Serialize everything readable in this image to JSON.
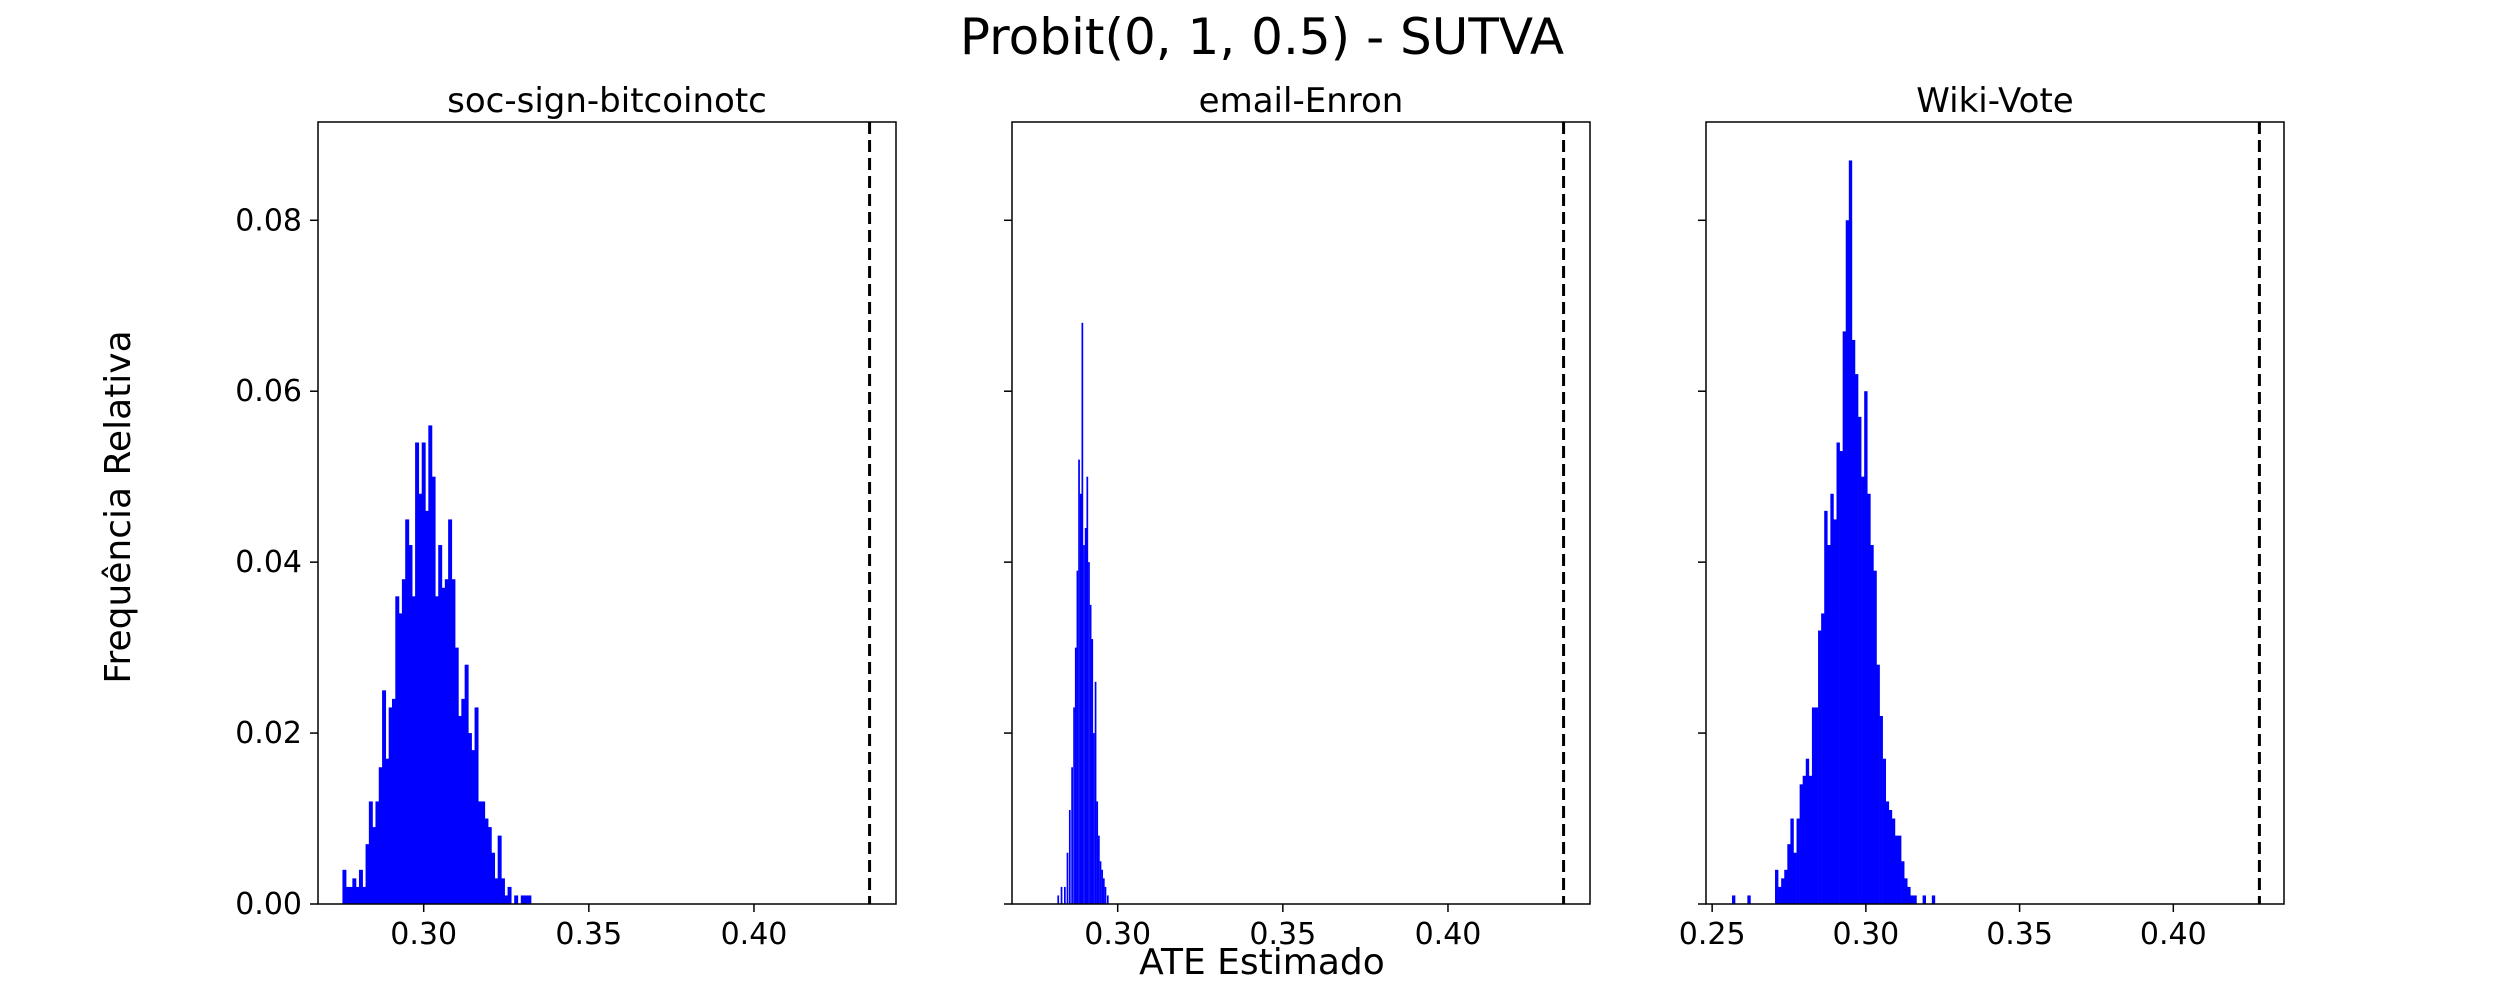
{
  "figure": {
    "title": "Probit(0, 1, 0.5) - SUTVA",
    "xlabel": "ATE Estimado",
    "ylabel": "Frequência Relativa",
    "bar_color": "#0000ff",
    "reference_line_color": "#000000"
  },
  "chart_data": [
    {
      "type": "bar",
      "title": "soc-sign-bitcoinotc",
      "xlim": [
        0.268,
        0.443
      ],
      "ylim": [
        0,
        0.0915
      ],
      "xticks": [
        0.3,
        0.35,
        0.4
      ],
      "xtick_labels": [
        "0.30",
        "0.35",
        "0.40"
      ],
      "yticks": [
        0.0,
        0.02,
        0.04,
        0.06,
        0.08
      ],
      "ytick_labels": [
        "0.00",
        "0.02",
        "0.04",
        "0.06",
        "0.08"
      ],
      "bin_width": 0.0012,
      "reference_x": 0.435,
      "bins": [
        [
          0.276,
          0.004
        ],
        [
          0.277,
          0.002
        ],
        [
          0.278,
          0.002
        ],
        [
          0.279,
          0.003
        ],
        [
          0.28,
          0.002
        ],
        [
          0.281,
          0.004
        ],
        [
          0.282,
          0.002
        ],
        [
          0.283,
          0.007
        ],
        [
          0.284,
          0.012
        ],
        [
          0.285,
          0.009
        ],
        [
          0.286,
          0.012
        ],
        [
          0.287,
          0.016
        ],
        [
          0.288,
          0.025
        ],
        [
          0.289,
          0.017
        ],
        [
          0.29,
          0.023
        ],
        [
          0.291,
          0.024
        ],
        [
          0.292,
          0.036
        ],
        [
          0.293,
          0.034
        ],
        [
          0.294,
          0.038
        ],
        [
          0.295,
          0.045
        ],
        [
          0.296,
          0.042
        ],
        [
          0.297,
          0.036
        ],
        [
          0.298,
          0.054
        ],
        [
          0.299,
          0.048
        ],
        [
          0.3,
          0.054
        ],
        [
          0.301,
          0.046
        ],
        [
          0.302,
          0.056
        ],
        [
          0.303,
          0.05
        ],
        [
          0.304,
          0.036
        ],
        [
          0.305,
          0.042
        ],
        [
          0.306,
          0.037
        ],
        [
          0.307,
          0.038
        ],
        [
          0.308,
          0.045
        ],
        [
          0.309,
          0.038
        ],
        [
          0.31,
          0.03
        ],
        [
          0.311,
          0.022
        ],
        [
          0.312,
          0.024
        ],
        [
          0.313,
          0.028
        ],
        [
          0.314,
          0.02
        ],
        [
          0.315,
          0.018
        ],
        [
          0.316,
          0.023
        ],
        [
          0.317,
          0.012
        ],
        [
          0.318,
          0.012
        ],
        [
          0.319,
          0.01
        ],
        [
          0.32,
          0.009
        ],
        [
          0.321,
          0.006
        ],
        [
          0.322,
          0.003
        ],
        [
          0.323,
          0.008
        ],
        [
          0.324,
          0.003
        ],
        [
          0.325,
          0.001
        ],
        [
          0.326,
          0.002
        ],
        [
          0.328,
          0.001
        ],
        [
          0.33,
          0.001
        ],
        [
          0.331,
          0.001
        ],
        [
          0.332,
          0.001
        ]
      ]
    },
    {
      "type": "bar",
      "title": "email-Enron",
      "xlim": [
        0.268,
        0.443
      ],
      "ylim": [
        0,
        0.0915
      ],
      "xticks": [
        0.3,
        0.35,
        0.4
      ],
      "xtick_labels": [
        "0.30",
        "0.35",
        "0.40"
      ],
      "yticks": [
        0.0,
        0.02,
        0.04,
        0.06,
        0.08
      ],
      "ytick_labels": [],
      "bin_width": 0.00052,
      "reference_x": 0.435,
      "bins": [
        [
          0.282,
          0.001
        ],
        [
          0.283,
          0.002
        ],
        [
          0.284,
          0.002
        ],
        [
          0.2848,
          0.006
        ],
        [
          0.2855,
          0.011
        ],
        [
          0.2862,
          0.016
        ],
        [
          0.2868,
          0.023
        ],
        [
          0.2873,
          0.03
        ],
        [
          0.2878,
          0.039
        ],
        [
          0.2883,
          0.052
        ],
        [
          0.2888,
          0.048
        ],
        [
          0.2893,
          0.068
        ],
        [
          0.2898,
          0.042
        ],
        [
          0.2903,
          0.044
        ],
        [
          0.2908,
          0.05
        ],
        [
          0.2913,
          0.04
        ],
        [
          0.2918,
          0.035
        ],
        [
          0.2923,
          0.031
        ],
        [
          0.2928,
          0.02
        ],
        [
          0.2933,
          0.026
        ],
        [
          0.2938,
          0.012
        ],
        [
          0.2943,
          0.008
        ],
        [
          0.2948,
          0.005
        ],
        [
          0.2953,
          0.004
        ],
        [
          0.2958,
          0.003
        ],
        [
          0.2963,
          0.002
        ],
        [
          0.297,
          0.001
        ]
      ]
    },
    {
      "type": "bar",
      "title": "Wiki-Vote",
      "xlim": [
        0.248,
        0.436
      ],
      "ylim": [
        0,
        0.0915
      ],
      "xticks": [
        0.25,
        0.3,
        0.35,
        0.4
      ],
      "xtick_labels": [
        "0.25",
        "0.30",
        "0.35",
        "0.40"
      ],
      "yticks": [
        0.0,
        0.02,
        0.04,
        0.06,
        0.08
      ],
      "ytick_labels": [],
      "bin_width": 0.0011,
      "reference_x": 0.428,
      "bins": [
        [
          0.257,
          0.001
        ],
        [
          0.262,
          0.001
        ],
        [
          0.271,
          0.004
        ],
        [
          0.272,
          0.002
        ],
        [
          0.273,
          0.003
        ],
        [
          0.274,
          0.004
        ],
        [
          0.275,
          0.007
        ],
        [
          0.276,
          0.01
        ],
        [
          0.277,
          0.006
        ],
        [
          0.278,
          0.01
        ],
        [
          0.279,
          0.014
        ],
        [
          0.28,
          0.015
        ],
        [
          0.281,
          0.017
        ],
        [
          0.282,
          0.015
        ],
        [
          0.283,
          0.023
        ],
        [
          0.284,
          0.023
        ],
        [
          0.285,
          0.032
        ],
        [
          0.286,
          0.034
        ],
        [
          0.287,
          0.046
        ],
        [
          0.288,
          0.042
        ],
        [
          0.289,
          0.048
        ],
        [
          0.29,
          0.045
        ],
        [
          0.291,
          0.054
        ],
        [
          0.292,
          0.053
        ],
        [
          0.293,
          0.067
        ],
        [
          0.294,
          0.08
        ],
        [
          0.295,
          0.087
        ],
        [
          0.296,
          0.066
        ],
        [
          0.297,
          0.062
        ],
        [
          0.298,
          0.057
        ],
        [
          0.299,
          0.05
        ],
        [
          0.3,
          0.06
        ],
        [
          0.301,
          0.048
        ],
        [
          0.302,
          0.042
        ],
        [
          0.303,
          0.039
        ],
        [
          0.304,
          0.028
        ],
        [
          0.305,
          0.022
        ],
        [
          0.306,
          0.017
        ],
        [
          0.307,
          0.012
        ],
        [
          0.308,
          0.011
        ],
        [
          0.309,
          0.01
        ],
        [
          0.31,
          0.008
        ],
        [
          0.311,
          0.008
        ],
        [
          0.312,
          0.005
        ],
        [
          0.313,
          0.003
        ],
        [
          0.314,
          0.002
        ],
        [
          0.315,
          0.001
        ],
        [
          0.316,
          0.001
        ],
        [
          0.319,
          0.001
        ],
        [
          0.322,
          0.001
        ]
      ]
    }
  ]
}
